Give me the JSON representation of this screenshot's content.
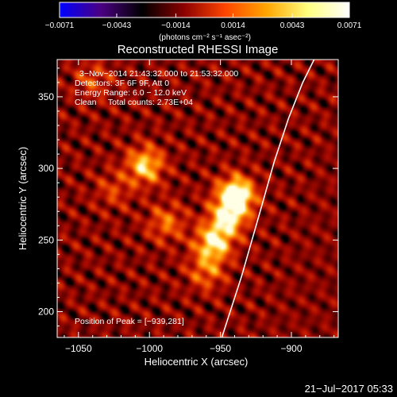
{
  "chart_data": {
    "type": "heatmap",
    "title": "Reconstructed RHESSI Image",
    "xlabel": "Heliocentric X (arcsec)",
    "ylabel": "Heliocentric Y (arcsec)",
    "xlim": [
      -1065,
      -867
    ],
    "ylim": [
      182,
      376
    ],
    "xticks": [
      -1050,
      -1000,
      -950,
      -900
    ],
    "xtick_labels": [
      "−1050",
      "−1000",
      "−950",
      "−900"
    ],
    "yticks": [
      200,
      250,
      300,
      350
    ],
    "ytick_labels": [
      "200",
      "250",
      "300",
      "350"
    ],
    "colorbar": {
      "min": -0.0071,
      "max": 0.0071,
      "ticks": [
        -0.0071,
        -0.0043,
        -0.0014,
        0.0014,
        0.0043,
        0.0071
      ],
      "tick_labels": [
        "−0.0071",
        "−0.0043",
        "−0.0014",
        "0.0014",
        "0.0043",
        "0.0071"
      ],
      "unit_label": "(photons cm⁻² s⁻¹ asec⁻²)",
      "colors": [
        "#0000ff",
        "#4b0082",
        "#000000",
        "#8b0000",
        "#ff4500",
        "#ffa500",
        "#ffff80",
        "#ffffff"
      ]
    },
    "info_lines": [
      "3−Nov−2014 21:43:32.000 to 21:53:32.000",
      "Detectors: 3F 6F 9F, Att 0",
      "Energy Range: 6.0 − 12.0 keV",
      "Clean     Total counts: 2.73E+04"
    ],
    "peak_label": "Position of Peak = [−939,281]",
    "sources": [
      {
        "x": -939,
        "y": 281,
        "peak": 0.0071
      },
      {
        "x": -945,
        "y": 265,
        "peak": 0.0045
      },
      {
        "x": -955,
        "y": 248,
        "peak": 0.0052
      },
      {
        "x": -960,
        "y": 228,
        "peak": 0.0028
      },
      {
        "x": -1003,
        "y": 302,
        "peak": 0.0048
      },
      {
        "x": -988,
        "y": 262,
        "peak": 0.0028
      },
      {
        "x": -1040,
        "y": 362,
        "peak": 0.002
      },
      {
        "x": -1025,
        "y": 285,
        "peak": 0.0018
      }
    ],
    "limb_curve": [
      [
        -949,
        182
      ],
      [
        -935,
        225
      ],
      [
        -922,
        270
      ],
      [
        -912,
        305
      ],
      [
        -902,
        335
      ],
      [
        -892,
        360
      ],
      [
        -884,
        376
      ]
    ],
    "timestamp": "21−Jul−2017 05:33"
  }
}
